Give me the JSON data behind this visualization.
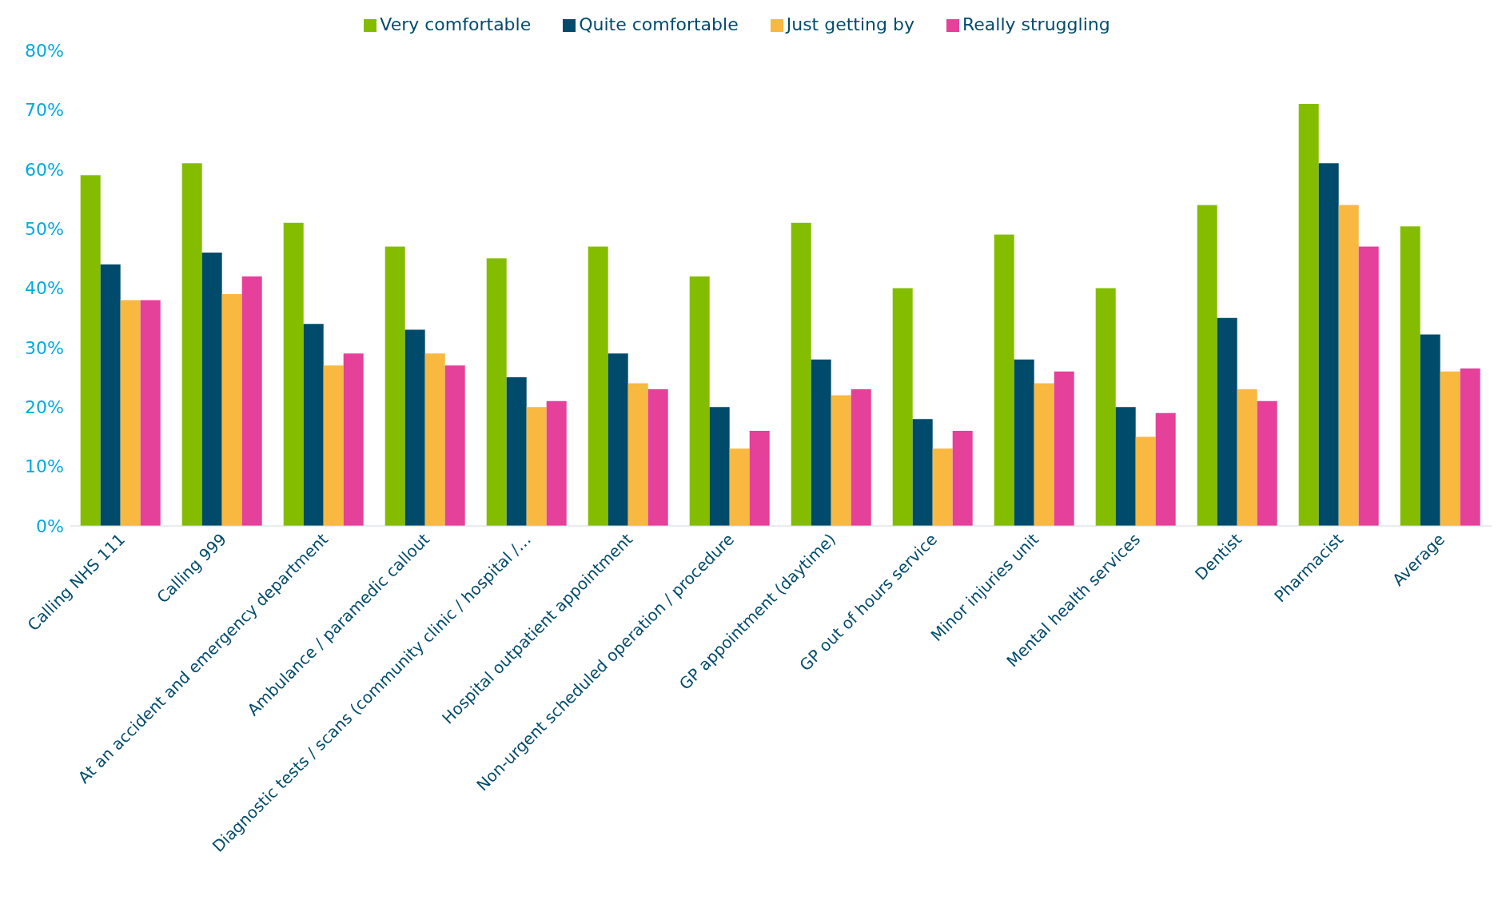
{
  "chart_data": {
    "type": "bar",
    "categories": [
      "Calling NHS 111",
      "Calling 999",
      "At an accident and emergency department",
      "Ambulance / paramedic callout",
      "Diagnostic tests / scans (community clinic / hospital /…",
      "Hospital outpatient appointment",
      "Non-urgent scheduled operation / procedure",
      "GP appointment (daytime)",
      "GP out of hours service",
      "Minor injuries unit",
      "Mental health services",
      "Dentist",
      "Pharmacist",
      "Average"
    ],
    "series": [
      {
        "name": "Very comfortable",
        "color": "#84bd00",
        "values": [
          59,
          61,
          51,
          47,
          45,
          47,
          42,
          51,
          40,
          49,
          40,
          54,
          71,
          50.4
        ]
      },
      {
        "name": "Quite comfortable",
        "color": "#004b6b",
        "values": [
          44,
          46,
          34,
          33,
          25,
          29,
          20,
          28,
          18,
          28,
          20,
          35,
          61,
          32.2
        ]
      },
      {
        "name": "Just getting by",
        "color": "#f9b840",
        "values": [
          38,
          39,
          27,
          29,
          20,
          24,
          13,
          22,
          13,
          24,
          15,
          23,
          54,
          26.0
        ]
      },
      {
        "name": "Really struggling",
        "color": "#e5409a",
        "values": [
          38,
          42,
          29,
          27,
          21,
          23,
          16,
          23,
          16,
          26,
          19,
          21,
          47,
          26.5
        ]
      }
    ],
    "ylim": [
      0,
      80
    ],
    "yticks": [
      {
        "value": 0,
        "label": "0%"
      },
      {
        "value": 10,
        "label": "10%"
      },
      {
        "value": 20,
        "label": "20%"
      },
      {
        "value": 30,
        "label": "30%"
      },
      {
        "value": 40,
        "label": "40%"
      },
      {
        "value": 50,
        "label": "50%"
      },
      {
        "value": 60,
        "label": "60%"
      },
      {
        "value": 70,
        "label": "70%"
      },
      {
        "value": 80,
        "label": "80%"
      }
    ],
    "grid": false,
    "legend": "top"
  }
}
